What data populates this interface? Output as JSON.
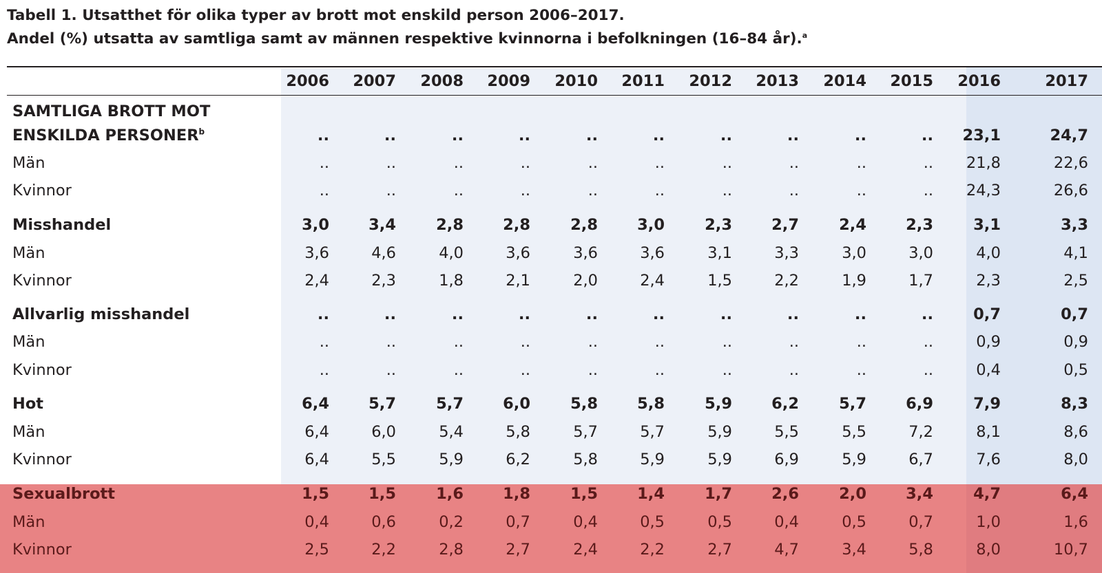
{
  "table": {
    "title_line1": "Tabell 1. Utsatthet för olika typer av brott mot enskild person 2006–2017.",
    "title_line2": "Andel (%) utsatta av samtliga samt av männen respektive kvinnorna i befolkningen (16–84 år).",
    "title_note": "a",
    "years": [
      "2006",
      "2007",
      "2008",
      "2009",
      "2010",
      "2011",
      "2012",
      "2013",
      "2014",
      "2015",
      "2016",
      "2017"
    ],
    "first_group_label_line1": "SAMTLIGA BROTT MOT",
    "first_group_label_line2": "ENSKILDA PERSONER",
    "first_group_note": "b",
    "rows": [
      {
        "label": "",
        "bold": true,
        "values": [
          "..",
          "..",
          "..",
          "..",
          "..",
          "..",
          "..",
          "..",
          "..",
          "..",
          "23,1",
          "24,7"
        ]
      },
      {
        "label": "Män",
        "bold": false,
        "values": [
          "..",
          "..",
          "..",
          "..",
          "..",
          "..",
          "..",
          "..",
          "..",
          "..",
          "21,8",
          "22,6"
        ]
      },
      {
        "label": "Kvinnor",
        "bold": false,
        "values": [
          "..",
          "..",
          "..",
          "..",
          "..",
          "..",
          "..",
          "..",
          "..",
          "..",
          "24,3",
          "26,6"
        ]
      },
      {
        "label": "Misshandel",
        "bold": true,
        "values": [
          "3,0",
          "3,4",
          "2,8",
          "2,8",
          "2,8",
          "3,0",
          "2,3",
          "2,7",
          "2,4",
          "2,3",
          "3,1",
          "3,3"
        ]
      },
      {
        "label": "Män",
        "bold": false,
        "values": [
          "3,6",
          "4,6",
          "4,0",
          "3,6",
          "3,6",
          "3,6",
          "3,1",
          "3,3",
          "3,0",
          "3,0",
          "4,0",
          "4,1"
        ]
      },
      {
        "label": "Kvinnor",
        "bold": false,
        "values": [
          "2,4",
          "2,3",
          "1,8",
          "2,1",
          "2,0",
          "2,4",
          "1,5",
          "2,2",
          "1,9",
          "1,7",
          "2,3",
          "2,5"
        ]
      },
      {
        "label": "Allvarlig misshandel",
        "bold": true,
        "values": [
          "..",
          "..",
          "..",
          "..",
          "..",
          "..",
          "..",
          "..",
          "..",
          "..",
          "0,7",
          "0,7"
        ]
      },
      {
        "label": "Män",
        "bold": false,
        "values": [
          "..",
          "..",
          "..",
          "..",
          "..",
          "..",
          "..",
          "..",
          "..",
          "..",
          "0,9",
          "0,9"
        ]
      },
      {
        "label": "Kvinnor",
        "bold": false,
        "values": [
          "..",
          "..",
          "..",
          "..",
          "..",
          "..",
          "..",
          "..",
          "..",
          "..",
          "0,4",
          "0,5"
        ]
      },
      {
        "label": "Hot",
        "bold": true,
        "values": [
          "6,4",
          "5,7",
          "5,7",
          "6,0",
          "5,8",
          "5,8",
          "5,9",
          "6,2",
          "5,7",
          "6,9",
          "7,9",
          "8,3"
        ]
      },
      {
        "label": "Män",
        "bold": false,
        "values": [
          "6,4",
          "6,0",
          "5,4",
          "5,8",
          "5,7",
          "5,7",
          "5,9",
          "5,5",
          "5,5",
          "7,2",
          "8,1",
          "8,6"
        ]
      },
      {
        "label": "Kvinnor",
        "bold": false,
        "values": [
          "6,4",
          "5,5",
          "5,9",
          "6,2",
          "5,8",
          "5,9",
          "5,9",
          "6,9",
          "5,9",
          "6,7",
          "7,6",
          "8,0"
        ]
      },
      {
        "label": "Sexualbrott",
        "bold": true,
        "values": [
          "1,5",
          "1,5",
          "1,6",
          "1,8",
          "1,5",
          "1,4",
          "1,7",
          "2,6",
          "2,0",
          "3,4",
          "4,7",
          "6,4"
        ]
      },
      {
        "label": "Män",
        "bold": false,
        "values": [
          "0,4",
          "0,6",
          "0,2",
          "0,7",
          "0,4",
          "0,5",
          "0,5",
          "0,4",
          "0,5",
          "0,7",
          "1,0",
          "1,6"
        ]
      },
      {
        "label": "Kvinnor",
        "bold": false,
        "values": [
          "2,5",
          "2,2",
          "2,8",
          "2,7",
          "2,4",
          "2,2",
          "2,7",
          "4,7",
          "3,4",
          "5,8",
          "8,0",
          "10,7"
        ]
      }
    ]
  },
  "colors": {
    "text": "#231f20",
    "column_shade": "#edf1f8",
    "latest_years_shade": "#dde6f3",
    "highlight_red": "#e88384",
    "highlight_label": "#7a1010"
  }
}
